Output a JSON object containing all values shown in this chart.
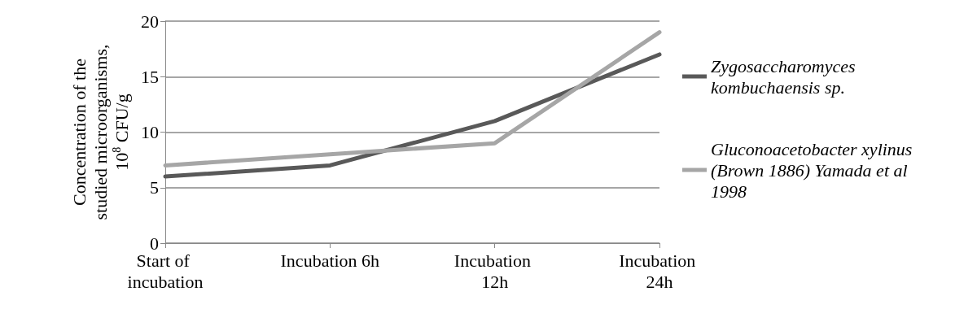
{
  "chart_data": {
    "type": "line",
    "ylabel": "Concentration of the studied microorganisms, 10$^{8}$ CFU/g",
    "categories": [
      "Start of incubation",
      "Incubation 6h",
      "Incubation 12h",
      "Incubation 24h"
    ],
    "series": [
      {
        "name": "Zygosaccharomyces kombuchaensis sp.",
        "color": "#595959",
        "values": [
          6,
          7,
          11,
          17
        ]
      },
      {
        "name": "Gluconoacetobacter xylinus (Brown 1886) Yamada et al 1998",
        "color": "#a6a6a6",
        "values": [
          7,
          8,
          9,
          19
        ]
      }
    ],
    "ylim": [
      0,
      20
    ],
    "yticks": [
      0,
      5,
      10,
      15,
      20
    ],
    "grid": "y",
    "legend": "right",
    "marker": "none",
    "line_style": "solid"
  }
}
